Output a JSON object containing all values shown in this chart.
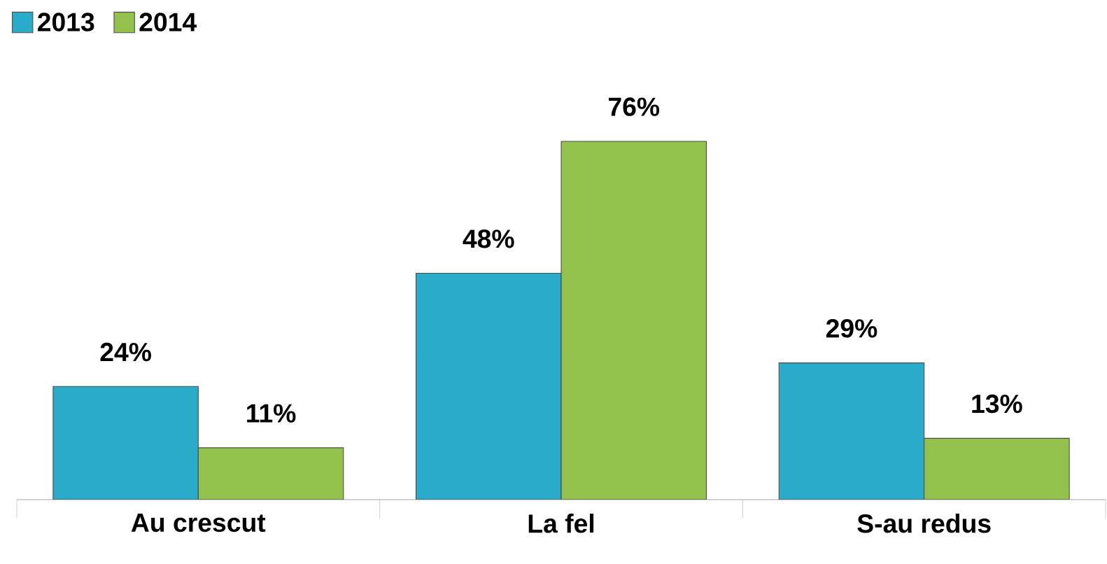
{
  "chart_data": {
    "type": "bar",
    "categories": [
      "Au crescut",
      "La fel",
      "S-au redus"
    ],
    "series": [
      {
        "name": "2013",
        "color": "#29abca",
        "values": [
          24,
          48,
          29
        ],
        "value_labels": [
          "24%",
          "48%",
          "29%"
        ]
      },
      {
        "name": "2014",
        "color": "#92c14c",
        "values": [
          11,
          76,
          13
        ],
        "value_labels": [
          "11%",
          "76%",
          "13%"
        ]
      }
    ],
    "legend": "top left"
  }
}
